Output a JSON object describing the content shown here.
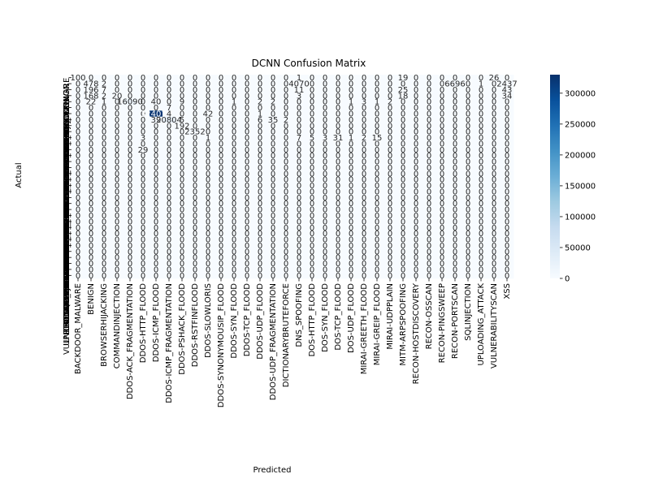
{
  "chart_data": {
    "type": "heatmap",
    "title": "DCNN Confusion Matrix",
    "xlabel": "Predicted",
    "ylabel": "Actual",
    "categories": [
      "BACKDOOR_MALWARE",
      "BENIGN",
      "BROWSERHIJACKING",
      "COMMANDINJECTION",
      "DDOS-ACK_FRAGMENTATION",
      "DDOS-HTTP_FLOOD",
      "DDOS-ICMP_FLOOD",
      "DDOS-ICMP_FRAGMENTATION",
      "DDOS-PSHACK_FLOOD",
      "DDOS-RSTFINFLOOD",
      "DDOS-SLOWLORIS",
      "DDOS-SYNONYMOUSIP_FLOOD",
      "DDOS-SYN_FLOOD",
      "DDOS-TCP_FLOOD",
      "DDOS-UDP_FLOOD",
      "DDOS-UDP_FRAGMENTATION",
      "DICTIONARYBRUTEFORCE",
      "DNS_SPOOFING",
      "DOS-HTTP_FLOOD",
      "DOS-SYN_FLOOD",
      "DOS-TCP_FLOOD",
      "DOS-UDP_FLOOD",
      "MIRAI-GREETH_FLOOD",
      "MIRAI-GREIP_FLOOD",
      "MIRAI-UDPPLAIN",
      "MITM-ARPSPOOFING",
      "RECON-HOSTDISCOVERY",
      "RECON-OSSCAN",
      "RECON-PINGSWEEP",
      "RECON-PORTSCAN",
      "SQLINJECTION",
      "UPLOADING_ATTACK",
      "VULNERABILITYSCAN",
      "XSS"
    ],
    "x_tick_labels": [
      "BACKDOOR_MALWARE",
      "BROWSERHIJACKING",
      "DDOS-ACK_FRAGMENTATION",
      "DDOS-ICMP_FLOOD",
      "DDOS-PSHACK_FLOOD",
      "DDOS-SLOWLORIS",
      "DDOS-SYN_FLOOD",
      "DDOS-UDP_FLOOD",
      "DICTIONARYBRUTEFORCE",
      "DOS-HTTP_FLOOD",
      "DOS-TCP_FLOOD",
      "MIRAI-GREETH_FLOOD",
      "MIRAI-UDPPLAIN",
      "RECON-HOSTDISCOVERY",
      "RECON-PINGSWEEP",
      "SQLINJECTION",
      "VULNERABILITYSCAN",
      "BENIGN",
      "COMMANDINJECTION",
      "DDOS-HTTP_FLOOD",
      "DDOS-ICMP_FRAGMENTATION",
      "DDOS-RSTFINFLOOD",
      "DDOS-SYNONYMOUSIP_FLOOD",
      "DDOS-TCP_FLOOD",
      "DDOS-UDP_FRAGMENTATION",
      "DNS_SPOOFING",
      "DOS-SYN_FLOOD",
      "DOS-UDP_FLOOD",
      "MIRAI-GREIP_FLOOD",
      "MITM-ARPSPOOFING",
      "RECON-OSSCAN",
      "RECON-PORTSCAN",
      "UPLOADING_ATTACK",
      "XSS"
    ],
    "y_tick_labels": [
      "BACKDOOR_MALWARE",
      "BROWSERHIJACKING",
      "DDOS-ACK_FRAGMENTATION",
      "DDOS-ICMP_FLOOD",
      "DDOS-PSHACK_FLOOD",
      "DDOS-SLOWLORIS",
      "DDOS-SYN_FLOOD",
      "DDOS-UDP_FLOOD",
      "DICTIONARYBRUTEFORCE",
      "DOS-HTTP_FLOOD",
      "DOS-TCP_FLOOD",
      "MIRAI-GREETH_FLOOD",
      "MIRAI-UDPPLAIN",
      "RECON-HOSTDISCOVERY",
      "RECON-PINGSWEEP",
      "SQLINJECTION",
      "VULNERABILITYSCAN",
      "BENIGN",
      "COMMANDINJECTION",
      "DDOS-HTTP_FLOOD",
      "DDOS-ICMP_FRAGMENTATION",
      "DDOS-RSTFINFLOOD",
      "DDOS-SYNONYMOUSIP_FLOOD",
      "DDOS-TCP_FLOOD",
      "DDOS-UDP_FRAGMENTATION",
      "DNS_SPOOFING",
      "DOS-SYN_FLOOD",
      "DOS-UDP_FLOOD",
      "MIRAI-GREIP_FLOOD",
      "MITM-ARPSPOOFING",
      "RECON-OSSCAN",
      "RECON-PORTSCAN",
      "UPLOADING_ATTACK",
      "XSS"
    ],
    "values": [
      [
        100,
        0,
        0,
        0,
        0,
        0,
        0,
        0,
        0,
        0,
        0,
        0,
        0,
        0,
        0,
        0,
        0,
        1,
        0,
        0,
        0,
        0,
        0,
        0,
        0,
        19,
        0,
        0,
        0,
        0,
        0,
        0,
        26,
        0
      ],
      [
        0,
        478,
        2,
        0,
        0,
        0,
        0,
        0,
        0,
        0,
        0,
        0,
        0,
        0,
        0,
        0,
        0,
        4070,
        0,
        0,
        0,
        0,
        0,
        0,
        0,
        0,
        0,
        0,
        0,
        6696,
        0,
        1,
        0,
        2437
      ],
      [
        0,
        196,
        7,
        0,
        0,
        0,
        0,
        0,
        0,
        0,
        0,
        0,
        0,
        0,
        0,
        0,
        0,
        11,
        0,
        0,
        0,
        0,
        0,
        0,
        0,
        25,
        0,
        0,
        0,
        0,
        0,
        0,
        0,
        43
      ],
      [
        0,
        168,
        2,
        20,
        0,
        0,
        0,
        0,
        0,
        0,
        0,
        0,
        0,
        0,
        0,
        0,
        0,
        3,
        0,
        0,
        0,
        0,
        0,
        0,
        0,
        18,
        0,
        0,
        0,
        0,
        0,
        0,
        0,
        34
      ],
      [
        0,
        22,
        1,
        0,
        16090,
        0,
        40,
        0,
        9,
        0,
        0,
        0,
        1,
        0,
        2,
        2,
        0,
        0,
        0,
        0,
        0,
        1,
        3,
        1,
        2,
        0,
        0,
        0,
        0,
        0,
        0,
        0,
        0,
        0
      ],
      [
        0,
        0,
        0,
        0,
        0,
        0,
        0,
        7,
        0,
        0,
        0,
        0,
        0,
        0,
        0,
        0,
        0,
        0,
        0,
        0,
        0,
        0,
        0,
        0,
        0,
        0,
        0,
        0,
        0,
        0,
        0,
        0,
        0,
        0
      ],
      [
        0,
        0,
        0,
        0,
        0,
        0,
        324070,
        4,
        0,
        0,
        42,
        0,
        0,
        0,
        1,
        0,
        0,
        0,
        0,
        0,
        0,
        0,
        0,
        0,
        0,
        0,
        0,
        0,
        0,
        0,
        0,
        0,
        0,
        0
      ],
      [
        0,
        0,
        0,
        0,
        0,
        0,
        39,
        20804,
        5,
        0,
        0,
        0,
        0,
        0,
        6,
        35,
        2,
        0,
        0,
        0,
        0,
        0,
        0,
        0,
        0,
        0,
        0,
        0,
        0,
        0,
        0,
        0,
        0,
        0
      ],
      [
        0,
        0,
        0,
        0,
        0,
        0,
        0,
        0,
        192,
        0,
        0,
        0,
        0,
        0,
        0,
        0,
        0,
        0,
        0,
        0,
        0,
        0,
        0,
        0,
        0,
        0,
        0,
        0,
        0,
        0,
        0,
        0,
        0,
        0
      ],
      [
        0,
        0,
        0,
        0,
        0,
        0,
        0,
        0,
        0,
        2352,
        0,
        0,
        0,
        0,
        0,
        0,
        0,
        0,
        0,
        0,
        0,
        0,
        0,
        0,
        0,
        0,
        0,
        0,
        0,
        0,
        0,
        0,
        0,
        0
      ],
      [
        0,
        0,
        0,
        0,
        0,
        3,
        0,
        0,
        0,
        0,
        1,
        0,
        0,
        0,
        0,
        0,
        0,
        7,
        5,
        3,
        31,
        1,
        2,
        15,
        0,
        0,
        0,
        0,
        0,
        0,
        0,
        0,
        0,
        0
      ],
      [
        0,
        0,
        0,
        0,
        0,
        0,
        0,
        0,
        0,
        0,
        0,
        0,
        0,
        0,
        0,
        0,
        0,
        0,
        0,
        0,
        0,
        0,
        0,
        0,
        0,
        0,
        0,
        0,
        0,
        0,
        0,
        0,
        0,
        0
      ],
      [
        0,
        0,
        0,
        0,
        0,
        29,
        0,
        0,
        0,
        0,
        0,
        0,
        0,
        0,
        0,
        0,
        0,
        0,
        0,
        0,
        0,
        0,
        0,
        0,
        0,
        0,
        0,
        0,
        0,
        0,
        0,
        0,
        0,
        0
      ],
      [
        0,
        0,
        0,
        0,
        0,
        0,
        0,
        0,
        0,
        0,
        0,
        0,
        0,
        0,
        0,
        0,
        0,
        0,
        0,
        0,
        0,
        0,
        0,
        0,
        0,
        0,
        0,
        0,
        0,
        0,
        0,
        0,
        0,
        0
      ],
      [
        0,
        0,
        0,
        0,
        0,
        0,
        0,
        0,
        0,
        0,
        0,
        0,
        0,
        0,
        0,
        0,
        0,
        0,
        0,
        0,
        0,
        0,
        0,
        0,
        0,
        0,
        0,
        0,
        0,
        0,
        0,
        0,
        0,
        0
      ],
      [
        0,
        0,
        0,
        0,
        0,
        0,
        0,
        0,
        0,
        0,
        0,
        0,
        0,
        0,
        0,
        0,
        0,
        0,
        0,
        0,
        0,
        0,
        0,
        0,
        0,
        0,
        0,
        0,
        0,
        0,
        0,
        0,
        0,
        0
      ],
      [
        0,
        0,
        0,
        0,
        0,
        0,
        0,
        0,
        0,
        0,
        0,
        0,
        0,
        0,
        0,
        0,
        0,
        0,
        0,
        0,
        0,
        0,
        0,
        0,
        0,
        0,
        0,
        0,
        0,
        0,
        0,
        0,
        0,
        0
      ],
      [
        0,
        0,
        0,
        0,
        0,
        0,
        0,
        0,
        0,
        0,
        0,
        0,
        0,
        0,
        0,
        0,
        0,
        0,
        0,
        0,
        0,
        0,
        0,
        0,
        0,
        0,
        0,
        0,
        0,
        0,
        0,
        0,
        0,
        0
      ],
      [
        0,
        0,
        0,
        0,
        0,
        0,
        0,
        0,
        0,
        0,
        0,
        0,
        0,
        0,
        0,
        0,
        0,
        0,
        0,
        0,
        0,
        0,
        0,
        0,
        0,
        0,
        0,
        0,
        0,
        0,
        0,
        0,
        0,
        0
      ],
      [
        0,
        0,
        0,
        0,
        0,
        0,
        0,
        0,
        0,
        0,
        0,
        0,
        0,
        0,
        0,
        0,
        0,
        0,
        0,
        0,
        0,
        0,
        0,
        0,
        0,
        0,
        0,
        0,
        0,
        0,
        0,
        0,
        0,
        0
      ],
      [
        0,
        0,
        0,
        0,
        0,
        0,
        0,
        0,
        0,
        0,
        0,
        0,
        0,
        0,
        0,
        0,
        0,
        0,
        0,
        0,
        0,
        0,
        0,
        0,
        0,
        0,
        0,
        0,
        0,
        0,
        0,
        0,
        0,
        0
      ],
      [
        0,
        0,
        0,
        0,
        0,
        0,
        0,
        0,
        0,
        0,
        0,
        0,
        0,
        0,
        0,
        0,
        0,
        0,
        0,
        0,
        0,
        0,
        0,
        0,
        0,
        0,
        0,
        0,
        0,
        0,
        0,
        0,
        0,
        0
      ],
      [
        0,
        0,
        0,
        0,
        0,
        0,
        0,
        0,
        0,
        0,
        0,
        0,
        0,
        0,
        0,
        0,
        0,
        0,
        0,
        0,
        0,
        0,
        0,
        0,
        0,
        0,
        0,
        0,
        0,
        0,
        0,
        0,
        0,
        0
      ],
      [
        0,
        0,
        0,
        0,
        0,
        0,
        0,
        0,
        0,
        0,
        0,
        0,
        0,
        0,
        0,
        0,
        0,
        0,
        0,
        0,
        0,
        0,
        0,
        0,
        0,
        0,
        0,
        0,
        0,
        0,
        0,
        0,
        0,
        0
      ],
      [
        0,
        0,
        0,
        0,
        0,
        0,
        0,
        0,
        0,
        0,
        0,
        0,
        0,
        0,
        0,
        0,
        0,
        0,
        0,
        0,
        0,
        0,
        0,
        0,
        0,
        0,
        0,
        0,
        0,
        0,
        0,
        0,
        0,
        0
      ],
      [
        0,
        0,
        0,
        0,
        0,
        0,
        0,
        0,
        0,
        0,
        0,
        0,
        0,
        0,
        0,
        0,
        0,
        0,
        0,
        0,
        0,
        0,
        0,
        0,
        0,
        0,
        0,
        0,
        0,
        0,
        0,
        0,
        0,
        0
      ],
      [
        0,
        0,
        0,
        0,
        0,
        0,
        0,
        0,
        0,
        0,
        0,
        0,
        0,
        0,
        0,
        0,
        0,
        0,
        0,
        0,
        0,
        0,
        0,
        0,
        0,
        0,
        0,
        0,
        0,
        0,
        0,
        0,
        0,
        0
      ],
      [
        0,
        0,
        0,
        0,
        0,
        0,
        0,
        0,
        0,
        0,
        0,
        0,
        0,
        0,
        0,
        0,
        0,
        0,
        0,
        0,
        0,
        0,
        0,
        0,
        0,
        0,
        0,
        0,
        0,
        0,
        0,
        0,
        0,
        0
      ],
      [
        0,
        0,
        0,
        0,
        0,
        0,
        0,
        0,
        0,
        0,
        0,
        0,
        0,
        0,
        0,
        0,
        0,
        0,
        0,
        0,
        0,
        0,
        0,
        0,
        0,
        0,
        0,
        0,
        0,
        0,
        0,
        0,
        0,
        0
      ],
      [
        0,
        0,
        0,
        0,
        0,
        0,
        0,
        0,
        0,
        0,
        0,
        0,
        0,
        0,
        0,
        0,
        0,
        0,
        0,
        0,
        0,
        0,
        0,
        0,
        0,
        0,
        0,
        0,
        0,
        0,
        0,
        0,
        0,
        0
      ],
      [
        0,
        0,
        0,
        0,
        0,
        0,
        0,
        0,
        0,
        0,
        0,
        0,
        0,
        0,
        0,
        0,
        0,
        0,
        0,
        0,
        0,
        0,
        0,
        0,
        0,
        0,
        0,
        0,
        0,
        0,
        0,
        0,
        0,
        0
      ],
      [
        0,
        0,
        0,
        0,
        0,
        0,
        0,
        0,
        0,
        0,
        0,
        0,
        0,
        0,
        0,
        0,
        0,
        0,
        0,
        0,
        0,
        0,
        0,
        0,
        0,
        0,
        0,
        0,
        0,
        0,
        0,
        0,
        0,
        0
      ],
      [
        0,
        0,
        0,
        0,
        0,
        0,
        0,
        0,
        0,
        0,
        0,
        0,
        0,
        0,
        0,
        0,
        0,
        0,
        0,
        0,
        0,
        0,
        0,
        0,
        0,
        0,
        0,
        0,
        0,
        0,
        0,
        0,
        0,
        0
      ],
      [
        0,
        0,
        0,
        0,
        0,
        0,
        0,
        0,
        0,
        0,
        0,
        0,
        0,
        0,
        0,
        0,
        0,
        0,
        0,
        0,
        0,
        0,
        0,
        0,
        0,
        0,
        0,
        0,
        0,
        0,
        0,
        0,
        0,
        0
      ]
    ],
    "colorbar": {
      "min": 0,
      "max": 330000,
      "ticks": [
        0,
        50000,
        100000,
        150000,
        200000,
        250000,
        300000
      ],
      "tick_labels": [
        "0",
        "50000",
        "100000",
        "150000",
        "200000",
        "250000",
        "300000"
      ]
    },
    "colormap": [
      "#f7fbff",
      "#deebf7",
      "#c6dbef",
      "#9ecae1",
      "#6baed6",
      "#4292c6",
      "#2171b5",
      "#08519c",
      "#08306b"
    ]
  }
}
